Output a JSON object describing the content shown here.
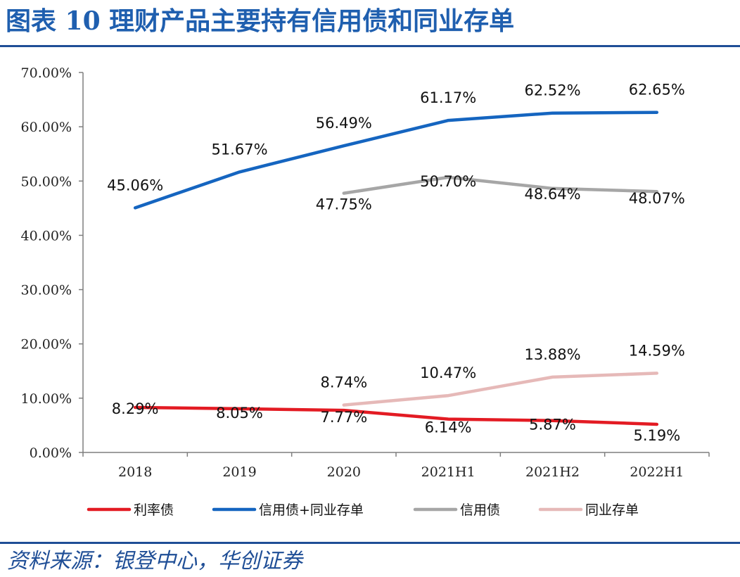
{
  "title": "图表 10   理财产品主要持有信用债和同业存单",
  "source": "资料来源：银登中心，华创证券",
  "chart_data": {
    "type": "line",
    "categories": [
      "2018",
      "2019",
      "2020",
      "2021H1",
      "2021H2",
      "2022H1"
    ],
    "ylim": [
      0,
      70
    ],
    "yticks": [
      "0.00%",
      "10.00%",
      "20.00%",
      "30.00%",
      "40.00%",
      "50.00%",
      "60.00%",
      "70.00%"
    ],
    "grid": false,
    "legend_position": "bottom",
    "series": [
      {
        "name": "利率债",
        "color": "#E31B23",
        "values": [
          8.29,
          8.05,
          7.77,
          6.14,
          5.87,
          5.19
        ],
        "labels": [
          "8.29%",
          "8.05%",
          "7.77%",
          "6.14%",
          "5.87%",
          "5.19%"
        ]
      },
      {
        "name": "信用债+同业存单",
        "color": "#1565C0",
        "values": [
          45.06,
          51.67,
          56.49,
          61.17,
          62.52,
          62.65
        ],
        "labels": [
          "45.06%",
          "51.67%",
          "56.49%",
          "61.17%",
          "62.52%",
          "62.65%"
        ]
      },
      {
        "name": "信用债",
        "color": "#A6A6A6",
        "values": [
          null,
          null,
          47.75,
          50.7,
          48.64,
          48.07
        ],
        "labels": [
          null,
          null,
          "47.75%",
          "50.70%",
          "48.64%",
          "48.07%"
        ]
      },
      {
        "name": "同业存单",
        "color": "#E6B9B8",
        "values": [
          null,
          null,
          8.74,
          10.47,
          13.88,
          14.59
        ],
        "labels": [
          null,
          null,
          "8.74%",
          "10.47%",
          "13.88%",
          "14.59%"
        ]
      }
    ]
  }
}
